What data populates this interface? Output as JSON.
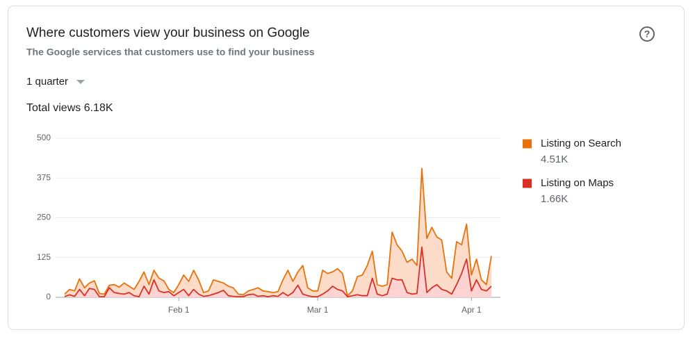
{
  "header": {
    "title": "Where customers view your business on Google",
    "subtitle": "The Google services that customers use to find your business",
    "period": "1 quarter",
    "total_views": "Total views 6.18K"
  },
  "chart_data": {
    "type": "area",
    "x": [
      "Jan 9",
      "Jan 10",
      "Jan 11",
      "Jan 12",
      "Jan 13",
      "Jan 14",
      "Jan 15",
      "Jan 16",
      "Jan 17",
      "Jan 18",
      "Jan 19",
      "Jan 20",
      "Jan 21",
      "Jan 22",
      "Jan 23",
      "Jan 24",
      "Jan 25",
      "Jan 26",
      "Jan 27",
      "Jan 28",
      "Jan 29",
      "Jan 30",
      "Jan 31",
      "Feb 1",
      "Feb 2",
      "Feb 3",
      "Feb 4",
      "Feb 5",
      "Feb 6",
      "Feb 7",
      "Feb 8",
      "Feb 9",
      "Feb 10",
      "Feb 11",
      "Feb 12",
      "Feb 13",
      "Feb 14",
      "Feb 15",
      "Feb 16",
      "Feb 17",
      "Feb 18",
      "Feb 19",
      "Feb 20",
      "Feb 21",
      "Feb 22",
      "Feb 23",
      "Feb 24",
      "Feb 25",
      "Feb 26",
      "Feb 27",
      "Feb 28",
      "Mar 1",
      "Mar 2",
      "Mar 3",
      "Mar 4",
      "Mar 5",
      "Mar 6",
      "Mar 7",
      "Mar 8",
      "Mar 9",
      "Mar 10",
      "Mar 11",
      "Mar 12",
      "Mar 13",
      "Mar 14",
      "Mar 15",
      "Mar 16",
      "Mar 17",
      "Mar 18",
      "Mar 19",
      "Mar 20",
      "Mar 21",
      "Mar 22",
      "Mar 23",
      "Mar 24",
      "Mar 25",
      "Mar 26",
      "Mar 27",
      "Mar 28",
      "Mar 29",
      "Mar 30",
      "Mar 31",
      "Apr 1",
      "Apr 2",
      "Apr 3",
      "Apr 4",
      "Apr 5"
    ],
    "xticks": [
      "Feb 1",
      "Mar 1",
      "Apr 1"
    ],
    "ylim": [
      0,
      500
    ],
    "yticks": [
      0,
      125,
      250,
      375,
      500
    ],
    "grid": true,
    "series": [
      {
        "name": "Listing on Search",
        "total_label": "4.51K",
        "color": "#e8710a",
        "fill": "#fcd6c0",
        "values": [
          10,
          25,
          20,
          58,
          30,
          45,
          52,
          12,
          10,
          38,
          40,
          32,
          45,
          35,
          25,
          50,
          80,
          40,
          85,
          60,
          52,
          25,
          15,
          40,
          70,
          50,
          85,
          55,
          15,
          20,
          55,
          50,
          45,
          35,
          30,
          10,
          8,
          20,
          25,
          30,
          20,
          18,
          15,
          18,
          55,
          85,
          50,
          80,
          100,
          30,
          20,
          20,
          85,
          75,
          80,
          90,
          75,
          5,
          20,
          65,
          70,
          100,
          145,
          40,
          35,
          40,
          205,
          165,
          145,
          110,
          120,
          100,
          405,
          185,
          220,
          190,
          180,
          80,
          60,
          175,
          165,
          230,
          70,
          120,
          55,
          40,
          130
        ]
      },
      {
        "name": "Listing on Maps",
        "total_label": "1.66K",
        "color": "#d93025",
        "fill": "#fcd0d4",
        "values": [
          2,
          8,
          3,
          25,
          5,
          28,
          25,
          2,
          2,
          30,
          15,
          12,
          10,
          15,
          5,
          2,
          35,
          10,
          55,
          20,
          15,
          18,
          5,
          15,
          25,
          5,
          25,
          10,
          3,
          5,
          10,
          15,
          22,
          5,
          3,
          2,
          2,
          8,
          10,
          3,
          5,
          2,
          5,
          3,
          15,
          5,
          15,
          38,
          10,
          5,
          2,
          2,
          10,
          20,
          35,
          25,
          20,
          2,
          5,
          8,
          5,
          5,
          60,
          10,
          5,
          10,
          60,
          55,
          55,
          15,
          10,
          12,
          158,
          15,
          30,
          40,
          25,
          20,
          10,
          40,
          75,
          120,
          20,
          55,
          25,
          20,
          35
        ]
      }
    ]
  }
}
